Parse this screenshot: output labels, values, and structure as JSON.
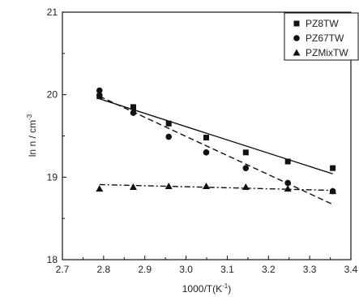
{
  "chart_data": {
    "type": "scatter",
    "xlabel": "1000/T(K",
    "xlabel_sup": "-1",
    "xlabel_end": ")",
    "ylabel": "ln n / cm",
    "ylabel_sup": "-3",
    "xlim": [
      2.7,
      3.4
    ],
    "ylim": [
      18,
      21
    ],
    "xticks": [
      "2.7",
      "2.8",
      "2.9",
      "3.0",
      "3.1",
      "3.2",
      "3.3",
      "3.4"
    ],
    "yticks": [
      "18",
      "19",
      "20",
      "21"
    ],
    "grid": false,
    "legend_position": "top-right",
    "series": [
      {
        "name": "PZ8TW",
        "marker": "square",
        "line_style": "solid",
        "x": [
          2.79,
          2.872,
          2.958,
          3.049,
          3.145,
          3.247,
          3.356
        ],
        "y": [
          19.98,
          19.85,
          19.65,
          19.48,
          19.3,
          19.19,
          19.11
        ],
        "fit": {
          "x": [
            2.79,
            3.356
          ],
          "y": [
            19.95,
            19.04
          ]
        }
      },
      {
        "name": "PZ67TW",
        "marker": "circle",
        "line_style": "dashed",
        "x": [
          2.79,
          2.79,
          2.872,
          2.958,
          3.049,
          3.145,
          3.247,
          3.356
        ],
        "y": [
          20.05,
          19.99,
          19.78,
          19.49,
          19.3,
          19.11,
          18.93,
          18.83
        ],
        "fit": {
          "x": [
            2.79,
            3.356
          ],
          "y": [
            19.98,
            18.67
          ]
        }
      },
      {
        "name": "PZMixTW",
        "marker": "triangle",
        "line_style": "dashdot",
        "x": [
          2.79,
          2.872,
          2.958,
          3.049,
          3.145,
          3.247,
          3.356
        ],
        "y": [
          18.86,
          18.88,
          18.89,
          18.89,
          18.88,
          18.86,
          18.83
        ],
        "fit": {
          "x": [
            2.79,
            3.356
          ],
          "y": [
            18.91,
            18.84
          ]
        }
      }
    ]
  },
  "colors": {
    "ink": "#111111",
    "background": "#ffffff"
  }
}
